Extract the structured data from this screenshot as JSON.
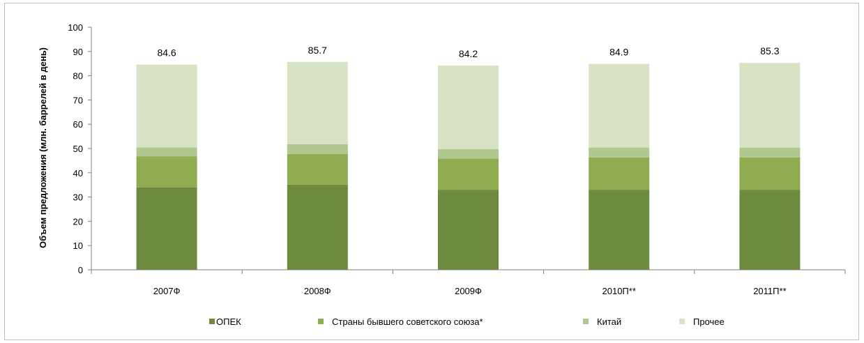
{
  "chart_data": {
    "type": "bar",
    "stacked": true,
    "categories": [
      "2007Ф",
      "2008Ф",
      "2009Ф",
      "2010П**",
      "2011П**"
    ],
    "series": [
      {
        "name": "ОПЕК",
        "color": "#6e8a3e",
        "values": [
          34.0,
          35.1,
          32.9,
          32.9,
          32.9
        ]
      },
      {
        "name": "Страны бывшего советского союза*",
        "color": "#8fac50",
        "values": [
          12.7,
          12.7,
          13.0,
          13.4,
          13.4
        ]
      },
      {
        "name": "Китай",
        "color": "#b0c890",
        "values": [
          3.8,
          4.0,
          3.9,
          4.1,
          4.1
        ]
      },
      {
        "name": "Прочее",
        "color": "#d8e3c6",
        "values": [
          34.1,
          33.9,
          34.4,
          34.5,
          34.9
        ]
      }
    ],
    "totals": [
      "84.6",
      "85.7",
      "84.2",
      "84.9",
      "85.3"
    ],
    "ylabel": "Объем предложения (млн. баррелей в день)",
    "ylim": [
      0,
      100
    ],
    "yticks": [
      "0",
      "10",
      "20",
      "30",
      "40",
      "50",
      "60",
      "70",
      "80",
      "90",
      "100"
    ],
    "grid": false,
    "legend_position": "bottom"
  }
}
